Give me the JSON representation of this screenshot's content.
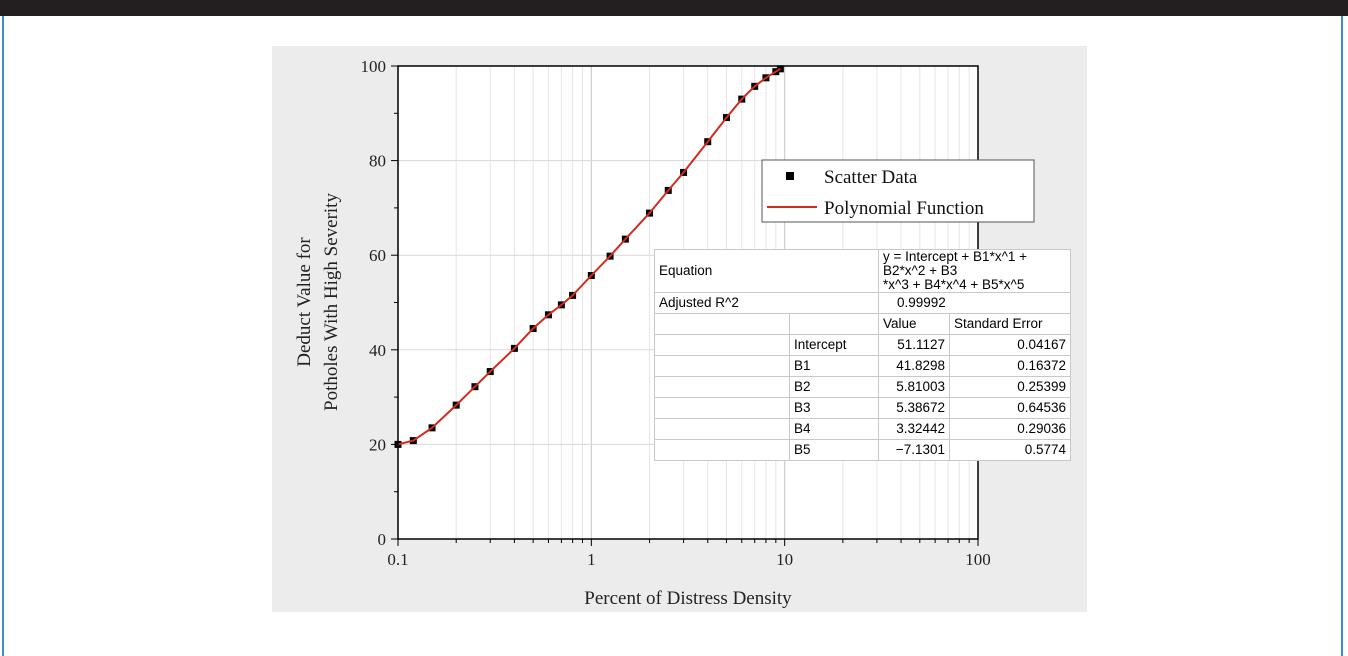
{
  "chart_data": {
    "type": "scatter",
    "xscale": "log",
    "xlabel": "Percent of Distress Density",
    "ylabel_lines": [
      "Deduct Value for",
      "Potholes With High Severity"
    ],
    "xlim": [
      0.1,
      100
    ],
    "ylim": [
      0,
      100
    ],
    "xticks": [
      0.1,
      1,
      10,
      100
    ],
    "xtick_labels": [
      "0.1",
      "1",
      "10",
      "100"
    ],
    "yticks": [
      0,
      20,
      40,
      60,
      80,
      100
    ],
    "ytick_labels": [
      "0",
      "20",
      "40",
      "60",
      "80",
      "100"
    ],
    "grid": true,
    "legend_position": "upper-right",
    "series": [
      {
        "name": "Scatter Data",
        "kind": "scatter",
        "color": "#000000",
        "x": [
          0.1,
          0.12,
          0.15,
          0.2,
          0.25,
          0.3,
          0.4,
          0.5,
          0.6,
          0.7,
          0.8,
          1.0,
          1.25,
          1.5,
          2.0,
          2.5,
          3.0,
          4.0,
          5.0,
          6.0,
          7.0,
          8.0,
          9.0,
          9.5
        ],
        "y": [
          20.0,
          20.8,
          23.5,
          28.3,
          32.2,
          35.4,
          40.3,
          44.5,
          47.4,
          49.5,
          51.5,
          55.7,
          59.8,
          63.4,
          68.9,
          73.7,
          77.5,
          84.0,
          89.1,
          93.0,
          95.7,
          97.5,
          98.8,
          99.4
        ]
      },
      {
        "name": "Polynomial Function",
        "kind": "line",
        "color": "#d22b1e",
        "x": [
          0.1,
          0.12,
          0.15,
          0.2,
          0.25,
          0.3,
          0.4,
          0.5,
          0.6,
          0.7,
          0.8,
          1.0,
          1.25,
          1.5,
          2.0,
          2.5,
          3.0,
          4.0,
          5.0,
          6.0,
          7.0,
          8.0,
          9.0,
          9.5
        ],
        "y": [
          20.0,
          20.8,
          23.5,
          28.3,
          32.2,
          35.4,
          40.3,
          44.5,
          47.4,
          49.5,
          51.5,
          55.7,
          59.8,
          63.4,
          68.9,
          73.7,
          77.5,
          84.0,
          89.1,
          93.0,
          95.7,
          97.5,
          98.8,
          99.4
        ]
      }
    ],
    "fit_table": {
      "equation_label": "Equation",
      "equation_line1": "y = Intercept + B1*x^1 + B2*x^2 + B3",
      "equation_line2": "*x^3 + B4*x^4 + B5*x^5",
      "adj_r2_label": "Adjusted R^2",
      "adj_r2_value": "0.99992",
      "col_value": "Value",
      "col_stderr": "Standard Error",
      "rows": [
        {
          "name": "Intercept",
          "value": "51.1127",
          "stderr": "0.04167"
        },
        {
          "name": "B1",
          "value": "41.8298",
          "stderr": "0.16372"
        },
        {
          "name": "B2",
          "value": "5.81003",
          "stderr": "0.25399"
        },
        {
          "name": "B3",
          "value": "5.38672",
          "stderr": "0.64536"
        },
        {
          "name": "B4",
          "value": "3.32442",
          "stderr": "0.29036"
        },
        {
          "name": "B5",
          "value": "−7.1301",
          "stderr": "0.5774"
        }
      ]
    }
  }
}
